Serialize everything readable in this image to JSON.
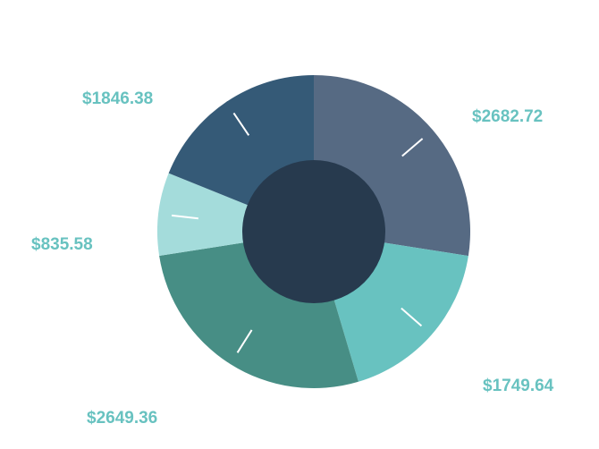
{
  "chart_data": {
    "type": "pie",
    "style": "donut",
    "title": "",
    "currency_prefix": "$",
    "slices": [
      {
        "label": "$2682.72",
        "value": 2682.72,
        "color": "#566a83"
      },
      {
        "label": "$1749.64",
        "value": 1749.64,
        "color": "#68c2c0"
      },
      {
        "label": "$2649.36",
        "value": 2649.36,
        "color": "#478e85"
      },
      {
        "label": "$835.58",
        "value": 835.58,
        "color": "#a4dcdb"
      },
      {
        "label": "$1846.38",
        "value": 1846.38,
        "color": "#355a77"
      }
    ],
    "center_color": "#273a4e",
    "label_color": "#68c2c0",
    "legend": "none",
    "grid": false
  }
}
